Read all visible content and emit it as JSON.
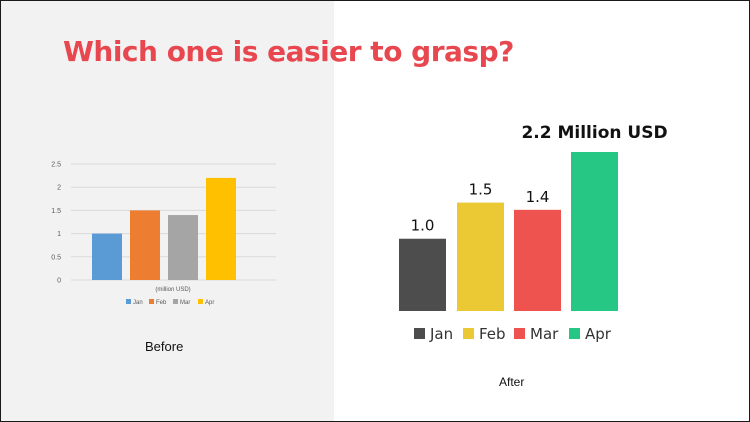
{
  "headline": "Which one is easier to grasp?",
  "chart_data": [
    {
      "type": "bar",
      "categories": [
        "Jan",
        "Feb",
        "Mar",
        "Apr"
      ],
      "values": [
        1.0,
        1.5,
        1.4,
        2.2
      ],
      "colors": [
        "#5b9bd5",
        "#ed7d31",
        "#a5a5a5",
        "#ffc000"
      ],
      "ylim": [
        0,
        2.5
      ],
      "yticks": [
        "0",
        "0.5",
        "1",
        "1.5",
        "2",
        "2.5"
      ],
      "xlabel": "(million USD)",
      "grid": true,
      "legend": "bottom",
      "caption": "Before"
    },
    {
      "type": "bar",
      "categories": [
        "Jan",
        "Feb",
        "Mar",
        "Apr"
      ],
      "values": [
        1.0,
        1.5,
        1.4,
        2.2
      ],
      "data_labels": [
        "1.0",
        "1.5",
        "1.4",
        "2.2 Million USD"
      ],
      "colors": [
        "#4d4d4d",
        "#ebc934",
        "#ef5350",
        "#26c685"
      ],
      "grid": false,
      "legend": "bottom",
      "caption": "After"
    }
  ]
}
